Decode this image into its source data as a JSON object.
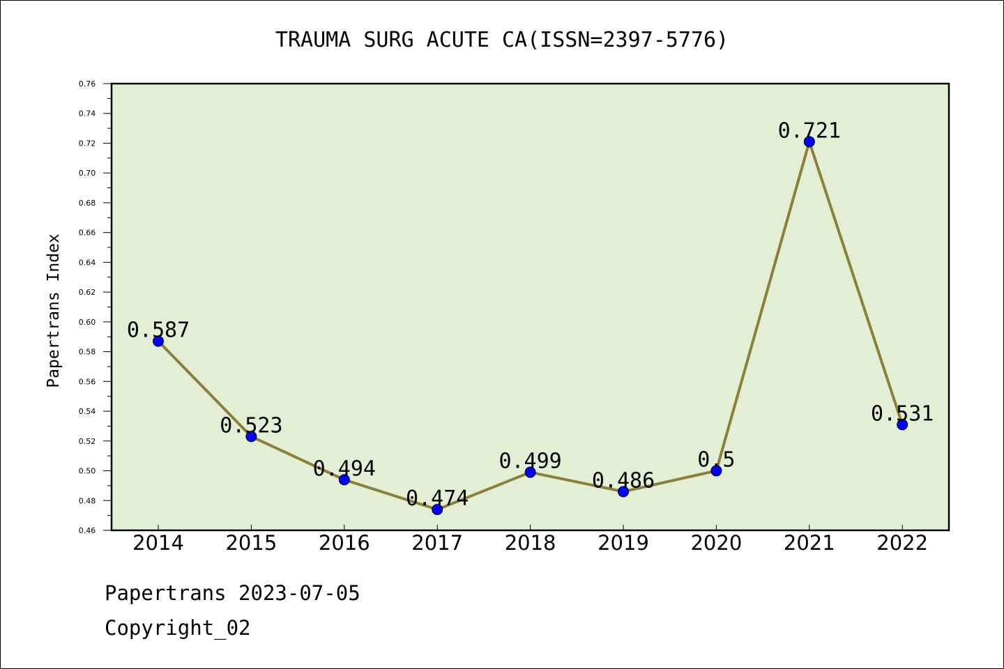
{
  "chart_data": {
    "type": "line",
    "title": "TRAUMA SURG ACUTE CA(ISSN=2397-5776)",
    "ylabel": "Papertrans Index",
    "xlabel": "",
    "categories": [
      "2014",
      "2015",
      "2016",
      "2017",
      "2018",
      "2019",
      "2020",
      "2021",
      "2022"
    ],
    "values": [
      0.587,
      0.523,
      0.494,
      0.474,
      0.499,
      0.486,
      0.5,
      0.721,
      0.531
    ],
    "data_labels": [
      "0.587",
      "0.523",
      "0.494",
      "0.474",
      "0.499",
      "0.486",
      "0.5",
      "0.721",
      "0.531"
    ],
    "ylim": [
      0.46,
      0.76
    ],
    "yticks": [
      "0.46",
      "0.48",
      "0.50",
      "0.52",
      "0.54",
      "0.56",
      "0.58",
      "0.60",
      "0.62",
      "0.64",
      "0.66",
      "0.68",
      "0.70",
      "0.72",
      "0.74",
      "0.76"
    ],
    "grid": false,
    "legend": "none",
    "colors": {
      "plot_background": "#e2efd4",
      "line": "#8c7f3a",
      "marker": "#0000ff"
    }
  },
  "footer": {
    "line1": "Papertrans 2023-07-05",
    "line2": "Copyright_02"
  }
}
